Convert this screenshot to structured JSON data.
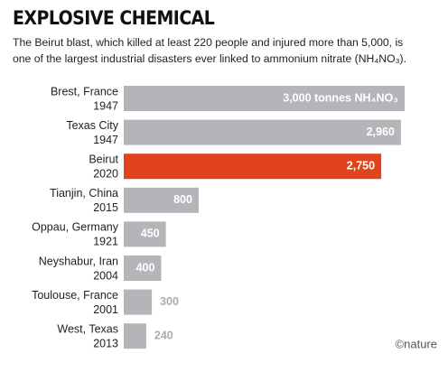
{
  "chart_data": {
    "type": "bar",
    "orientation": "horizontal",
    "title": "EXPLOSIVE CHEMICAL",
    "subtitle": "The Beirut blast, which killed at least 220 people and injured more than 5,000, is one of the largest industrial disasters ever linked to ammonium nitrate (NH₄NO₃).",
    "categories": [
      [
        "Brest, France",
        "1947"
      ],
      [
        "Texas City",
        "1947"
      ],
      [
        "Beirut",
        "2020"
      ],
      [
        "Tianjin, China",
        "2015"
      ],
      [
        "Oppau, Germany",
        "1921"
      ],
      [
        "Neyshabur, Iran",
        "2004"
      ],
      [
        "Toulouse, France",
        "2001"
      ],
      [
        "West, Texas",
        "2013"
      ]
    ],
    "values": [
      3000,
      2960,
      2750,
      800,
      450,
      400,
      300,
      240
    ],
    "value_labels": [
      "3,000 tonnes NH₄NO₃",
      "2,960",
      "2,750",
      "800",
      "450",
      "400",
      "300",
      "240"
    ],
    "colors": [
      "#b3b5b8",
      "#b3b5b8",
      "#e1431c",
      "#b3b5b8",
      "#b3b5b8",
      "#b3b5b8",
      "#b3b5b8",
      "#b3b5b8"
    ],
    "source": "©nature"
  }
}
